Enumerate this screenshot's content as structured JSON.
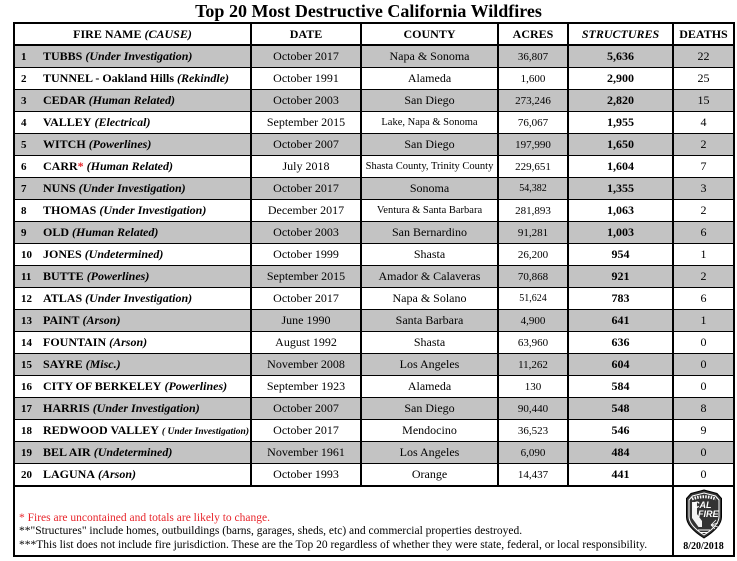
{
  "title": "Top 20 Most Destructive California Wildfires",
  "table": {
    "headers": {
      "fire_name": "FIRE NAME",
      "cause": "(CAUSE)",
      "date": "DATE",
      "county": "COUNTY",
      "acres": "ACRES",
      "structures": "STRUCTURES",
      "deaths": "DEATHS"
    },
    "rows": [
      {
        "rank": "1",
        "name": "TUBBS",
        "star": "",
        "cause": "(Under Investigation)",
        "date": "October 2017",
        "county": "Napa & Sonoma",
        "acres": "36,807",
        "structures": "5,636",
        "deaths": "22"
      },
      {
        "rank": "2",
        "name": "TUNNEL - Oakland Hills",
        "star": "",
        "cause": "(Rekindle)",
        "date": "October 1991",
        "county": "Alameda",
        "acres": "1,600",
        "structures": "2,900",
        "deaths": "25"
      },
      {
        "rank": "3",
        "name": "CEDAR",
        "star": "",
        "cause": "(Human Related)",
        "date": "October 2003",
        "county": "San Diego",
        "acres": "273,246",
        "structures": "2,820",
        "deaths": "15"
      },
      {
        "rank": "4",
        "name": "VALLEY",
        "star": "",
        "cause": "(Electrical)",
        "date": "September 2015",
        "county": "Lake, Napa & Sonoma",
        "acres": "76,067",
        "structures": "1,955",
        "deaths": "4"
      },
      {
        "rank": "5",
        "name": "WITCH",
        "star": "",
        "cause": "(Powerlines)",
        "date": "October 2007",
        "county": "San Diego",
        "acres": "197,990",
        "structures": "1,650",
        "deaths": "2"
      },
      {
        "rank": "6",
        "name": "CARR",
        "star": "*",
        "cause": "(Human Related)",
        "date": "July 2018",
        "county": "Shasta County, Trinity County",
        "acres": "229,651",
        "structures": "1,604",
        "deaths": "7"
      },
      {
        "rank": "7",
        "name": "NUNS",
        "star": "",
        "cause": "(Under Investigation)",
        "date": "October 2017",
        "county": "Sonoma",
        "acres": "54,382",
        "structures": "1,355",
        "deaths": "3"
      },
      {
        "rank": "8",
        "name": "THOMAS",
        "star": "",
        "cause": "(Under Investigation)",
        "date": "December 2017",
        "county": "Ventura & Santa Barbara",
        "acres": "281,893",
        "structures": "1,063",
        "deaths": "2"
      },
      {
        "rank": "9",
        "name": "OLD",
        "star": "",
        "cause": "(Human Related)",
        "date": "October 2003",
        "county": "San Bernardino",
        "acres": "91,281",
        "structures": "1,003",
        "deaths": "6"
      },
      {
        "rank": "10",
        "name": "JONES",
        "star": "",
        "cause": "(Undetermined)",
        "date": "October 1999",
        "county": "Shasta",
        "acres": "26,200",
        "structures": "954",
        "deaths": "1"
      },
      {
        "rank": "11",
        "name": "BUTTE",
        "star": "",
        "cause": "(Powerlines)",
        "date": "September 2015",
        "county": "Amador & Calaveras",
        "acres": "70,868",
        "structures": "921",
        "deaths": "2"
      },
      {
        "rank": "12",
        "name": "ATLAS",
        "star": "",
        "cause": "(Under Investigation)",
        "date": "October 2017",
        "county": "Napa & Solano",
        "acres": "51,624",
        "structures": "783",
        "deaths": "6"
      },
      {
        "rank": "13",
        "name": "PAINT",
        "star": "",
        "cause": "(Arson)",
        "date": "June 1990",
        "county": "Santa Barbara",
        "acres": "4,900",
        "structures": "641",
        "deaths": "1"
      },
      {
        "rank": "14",
        "name": "FOUNTAIN",
        "star": "",
        "cause": "(Arson)",
        "date": "August 1992",
        "county": "Shasta",
        "acres": "63,960",
        "structures": "636",
        "deaths": "0"
      },
      {
        "rank": "15",
        "name": "SAYRE",
        "star": "",
        "cause": "(Misc.)",
        "date": "November 2008",
        "county": "Los Angeles",
        "acres": "11,262",
        "structures": "604",
        "deaths": "0"
      },
      {
        "rank": "16",
        "name": "CITY OF BERKELEY",
        "star": "",
        "cause": "(Powerlines)",
        "date": "September 1923",
        "county": "Alameda",
        "acres": "130",
        "structures": "584",
        "deaths": "0"
      },
      {
        "rank": "17",
        "name": "HARRIS",
        "star": "",
        "cause": "(Under Investigation)",
        "date": "October 2007",
        "county": "San Diego",
        "acres": "90,440",
        "structures": "548",
        "deaths": "8"
      },
      {
        "rank": "18",
        "name": "REDWOOD VALLEY",
        "star": "",
        "cause": "( Under Investigation)",
        "date": "October 2017",
        "county": "Mendocino",
        "acres": "36,523",
        "structures": "546",
        "deaths": "9"
      },
      {
        "rank": "19",
        "name": "BEL AIR",
        "star": "",
        "cause": "(Undetermined)",
        "date": "November 1961",
        "county": "Los Angeles",
        "acres": "6,090",
        "structures": "484",
        "deaths": "0"
      },
      {
        "rank": "20",
        "name": "LAGUNA",
        "star": "",
        "cause": "(Arson)",
        "date": "October 1993",
        "county": "Orange",
        "acres": "14,437",
        "structures": "441",
        "deaths": "0"
      }
    ]
  },
  "footer": {
    "notes": [
      {
        "text": "* Fires are uncontained and totals are likely to change.",
        "red": true
      },
      {
        "text": "**\"Structures\" include homes, outbuildings (barns, garages, sheds, etc) and commercial properties destroyed.",
        "red": false
      },
      {
        "text": "***This list does not include fire jurisdiction.  These are the Top 20 regardless of whether they were state, federal, or local responsibility.",
        "red": false
      }
    ],
    "logo": {
      "line1": "CAL",
      "line2": "FIRE"
    },
    "date_stamp": "8/20/2018"
  },
  "colors": {
    "row_alternate": "#c3c3c3",
    "note_red": "#e8262c",
    "border": "#000000",
    "logo_dark": "#333333"
  }
}
